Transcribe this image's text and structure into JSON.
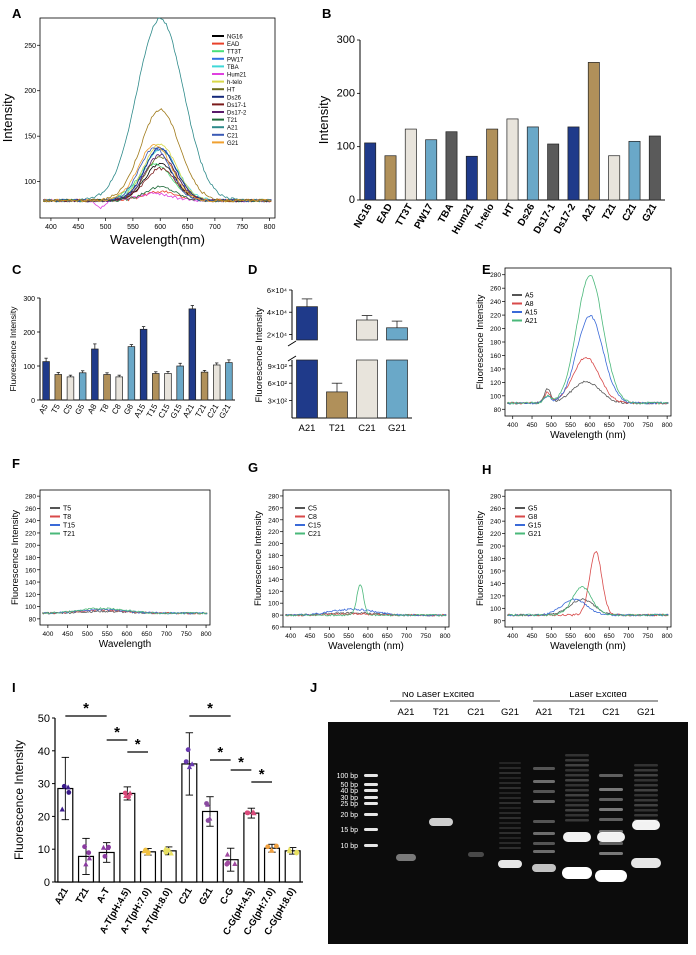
{
  "panels": {
    "A": {
      "letter": "A",
      "type": "line",
      "xlabel": "Wavelength(nm)",
      "ylabel": "Intensity",
      "xlim": [
        380,
        810
      ],
      "ylim": [
        60,
        280
      ],
      "xticks": [
        400,
        450,
        500,
        550,
        600,
        650,
        700,
        750,
        800
      ],
      "yticks": [
        100,
        150,
        200,
        250
      ],
      "series": [
        {
          "name": "NG16",
          "color": "#000000",
          "peak": 600,
          "amp": 40,
          "width": 40,
          "bump": 0
        },
        {
          "name": "EAD",
          "color": "#e8412a",
          "peak": 600,
          "amp": 10,
          "width": 40,
          "bump": 0
        },
        {
          "name": "TT3T",
          "color": "#48e07a",
          "peak": 590,
          "amp": 40,
          "width": 45,
          "bump": 0
        },
        {
          "name": "PW17",
          "color": "#2f6fe0",
          "peak": 600,
          "amp": 58,
          "width": 40,
          "bump": 0
        },
        {
          "name": "TBA",
          "color": "#3fd8d8",
          "peak": 600,
          "amp": 55,
          "width": 45,
          "bump": 0
        },
        {
          "name": "Hum21",
          "color": "#e040e0",
          "peak": 590,
          "amp": 8,
          "width": 40,
          "bump": -8
        },
        {
          "name": "h-telo",
          "color": "#d8d84a",
          "peak": 600,
          "amp": 62,
          "width": 42,
          "bump": 0
        },
        {
          "name": "HT",
          "color": "#6b6b1c",
          "peak": 600,
          "amp": 48,
          "width": 40,
          "bump": 0
        },
        {
          "name": "Ds26",
          "color": "#152a7a",
          "peak": 600,
          "amp": 58,
          "width": 40,
          "bump": 0
        },
        {
          "name": "Ds17-1",
          "color": "#7a1a1a",
          "peak": 600,
          "amp": 35,
          "width": 40,
          "bump": 0
        },
        {
          "name": "Ds17-2",
          "color": "#5a1a6a",
          "peak": 600,
          "amp": 50,
          "width": 40,
          "bump": 0
        },
        {
          "name": "T21",
          "color": "#1f6b3a",
          "peak": 600,
          "amp": 15,
          "width": 40,
          "bump": 0
        },
        {
          "name": "A21",
          "color": "#2e8a8a",
          "peak": 600,
          "amp": 200,
          "width": 60,
          "bump": 0
        },
        {
          "name": "C21",
          "color": "#3a5ab5",
          "peak": 590,
          "amp": 58,
          "width": 40,
          "bump": 0
        },
        {
          "name": "G21",
          "color": "#f0a030",
          "peak": 590,
          "amp": 62,
          "width": 42,
          "bump": 0
        },
        {
          "name": "",
          "color": "#a07a1a",
          "peak": 600,
          "amp": 100,
          "width": 50,
          "bump": 0
        }
      ]
    },
    "B": {
      "letter": "B",
      "type": "bar",
      "ylabel": "Intensity",
      "ylim": [
        0,
        300
      ],
      "yticks": [
        0,
        100,
        200,
        300
      ],
      "categories": [
        "NG16",
        "EAD",
        "TT3T",
        "PW17",
        "TBA",
        "Hum21",
        "h-telo",
        "HT",
        "Ds26",
        "Ds17-1",
        "Ds17-2",
        "A21",
        "T21",
        "C21",
        "G21"
      ],
      "values": [
        107,
        83,
        133,
        113,
        128,
        82,
        133,
        152,
        137,
        105,
        137,
        258,
        83,
        110,
        120
      ],
      "colors": [
        "#1f3a8a",
        "#b0905a",
        "#e8e4dc",
        "#6aa8c8",
        "#5a5a5a",
        "#1f3a8a",
        "#b0905a",
        "#e8e4dc",
        "#6aa8c8",
        "#5a5a5a",
        "#1f3a8a",
        "#b0905a",
        "#e8e4dc",
        "#6aa8c8",
        "#5a5a5a"
      ]
    },
    "C": {
      "letter": "C",
      "type": "bar",
      "ylabel": "Fluorescence Intensity",
      "ylim": [
        0,
        300
      ],
      "yticks": [
        0,
        100,
        200,
        300
      ],
      "categories": [
        "A5",
        "T5",
        "C5",
        "G5",
        "A8",
        "T8",
        "C8",
        "G8",
        "A15",
        "T15",
        "C15",
        "G15",
        "A21",
        "T21",
        "C21",
        "G21"
      ],
      "values": [
        113,
        75,
        68,
        80,
        150,
        75,
        68,
        157,
        208,
        78,
        78,
        100,
        268,
        82,
        103,
        110
      ],
      "errors": [
        10,
        6,
        5,
        6,
        15,
        5,
        5,
        6,
        8,
        5,
        6,
        8,
        10,
        5,
        6,
        8
      ],
      "colors": [
        "#1f3a8a",
        "#b0905a",
        "#e8e4dc",
        "#6aa8c8",
        "#1f3a8a",
        "#b0905a",
        "#e8e4dc",
        "#6aa8c8",
        "#1f3a8a",
        "#b0905a",
        "#e8e4dc",
        "#6aa8c8",
        "#1f3a8a",
        "#b0905a",
        "#e8e4dc",
        "#6aa8c8"
      ]
    },
    "D": {
      "letter": "D",
      "type": "bar",
      "ylabel": "Fluorescence Intensity",
      "categories": [
        "A21",
        "T21",
        "C21",
        "G21"
      ],
      "values": [
        45000,
        450,
        33000,
        26000
      ],
      "errors": [
        7000,
        150,
        4000,
        6000
      ],
      "colors": [
        "#1f3a8a",
        "#b0905a",
        "#e8e4dc",
        "#6aa8c8"
      ],
      "upper_ticks": [
        "6×10⁴",
        "4×10⁴",
        "2×10⁴"
      ],
      "lower_ticks": [
        "9×10²",
        "6×10²",
        "3×10²"
      ]
    },
    "E": {
      "letter": "E",
      "type": "line",
      "xlabel": "Wavelength (nm)",
      "ylabel": "Fluorescence Intensity",
      "xlim": [
        380,
        810
      ],
      "ylim": [
        70,
        290
      ],
      "xticks": [
        400,
        450,
        500,
        550,
        600,
        650,
        700,
        750,
        800
      ],
      "yticks": [
        80,
        100,
        120,
        140,
        160,
        180,
        200,
        220,
        240,
        260,
        280
      ],
      "series": [
        {
          "name": "A5",
          "color": "#555555",
          "peak": 590,
          "amp": 32,
          "width": 50,
          "bump": 20
        },
        {
          "name": "A8",
          "color": "#d84a4a",
          "peak": 590,
          "amp": 68,
          "width": 48,
          "bump": 15
        },
        {
          "name": "A15",
          "color": "#3a6ad8",
          "peak": 600,
          "amp": 130,
          "width": 48,
          "bump": 10
        },
        {
          "name": "A21",
          "color": "#4ab87a",
          "peak": 600,
          "amp": 190,
          "width": 48,
          "bump": 10
        }
      ]
    },
    "F": {
      "letter": "F",
      "type": "line",
      "xlabel": "Wavelength",
      "ylabel": "Fluorescence Intensity",
      "xlim": [
        380,
        810
      ],
      "ylim": [
        70,
        290
      ],
      "xticks": [
        400,
        450,
        500,
        550,
        600,
        650,
        700,
        750,
        800
      ],
      "yticks": [
        80,
        100,
        120,
        140,
        160,
        180,
        200,
        220,
        240,
        260,
        280
      ],
      "series": [
        {
          "name": "T5",
          "color": "#555555",
          "peak": 540,
          "amp": 3,
          "width": 80,
          "bump": 0
        },
        {
          "name": "T8",
          "color": "#d84a4a",
          "peak": 540,
          "amp": 5,
          "width": 80,
          "bump": 0
        },
        {
          "name": "T15",
          "color": "#3a6ad8",
          "peak": 540,
          "amp": 6,
          "width": 80,
          "bump": 0
        },
        {
          "name": "T21",
          "color": "#4ab87a",
          "peak": 540,
          "amp": 8,
          "width": 80,
          "bump": 0
        }
      ]
    },
    "G": {
      "letter": "G",
      "type": "line",
      "xlabel": "Wavelength (nm)",
      "ylabel": "Fluorescence Intensity",
      "xlim": [
        380,
        810
      ],
      "ylim": [
        60,
        290
      ],
      "xticks": [
        400,
        450,
        500,
        550,
        600,
        650,
        700,
        750,
        800
      ],
      "yticks": [
        60,
        80,
        100,
        120,
        140,
        160,
        180,
        200,
        220,
        240,
        260,
        280
      ],
      "series": [
        {
          "name": "C5",
          "color": "#555555",
          "peak": 560,
          "amp": 4,
          "width": 80,
          "bump": 0
        },
        {
          "name": "C8",
          "color": "#d84a4a",
          "peak": 560,
          "amp": 2,
          "width": 80,
          "bump": 0
        },
        {
          "name": "C15",
          "color": "#3a6ad8",
          "peak": 560,
          "amp": 10,
          "width": 80,
          "bump": 0
        },
        {
          "name": "C21",
          "color": "#4ab87a",
          "peak": 580,
          "amp": 52,
          "width": 12,
          "bump": 0
        }
      ]
    },
    "H": {
      "letter": "H",
      "type": "line",
      "xlabel": "Wavelength (nm)",
      "ylabel": "Fluorescence Intensity",
      "xlim": [
        380,
        810
      ],
      "ylim": [
        70,
        290
      ],
      "xticks": [
        400,
        450,
        500,
        550,
        600,
        650,
        700,
        750,
        800
      ],
      "yticks": [
        80,
        100,
        120,
        140,
        160,
        180,
        200,
        220,
        240,
        260,
        280
      ],
      "series": [
        {
          "name": "G5",
          "color": "#555555",
          "peak": 580,
          "amp": 25,
          "width": 45,
          "bump": 0
        },
        {
          "name": "G8",
          "color": "#d84a4a",
          "peak": 615,
          "amp": 102,
          "width": 22,
          "bump": 0
        },
        {
          "name": "G15",
          "color": "#3a6ad8",
          "peak": 560,
          "amp": 25,
          "width": 45,
          "bump": 0
        },
        {
          "name": "G21",
          "color": "#4ab87a",
          "peak": 580,
          "amp": 45,
          "width": 35,
          "bump": 0
        }
      ]
    },
    "I": {
      "letter": "I",
      "type": "bar",
      "ylabel": "Fluorescence Intensity",
      "ylim": [
        0,
        50
      ],
      "yticks": [
        0,
        10,
        20,
        30,
        40,
        50
      ],
      "categories": [
        "A21",
        "T21",
        "A-T",
        "A-T(pH:4.5)",
        "A-T(pH:7.0)",
        "A-T(pH:8.0)",
        "C21",
        "G21",
        "C-G",
        "C-G(pH:4.5)",
        "C-G(pH:7.0)",
        "C-G(pH:8.0)"
      ],
      "values": [
        28.5,
        7.8,
        9.0,
        27.0,
        9.2,
        9.5,
        36.0,
        21.5,
        6.8,
        21.0,
        10.3,
        9.5
      ],
      "errors": [
        9.5,
        5.5,
        3.0,
        2.0,
        1.0,
        1.2,
        9.5,
        4.5,
        3.5,
        1.5,
        1.2,
        1.0
      ],
      "dot_colors": [
        "#3a1a8a",
        "#8a3aa0",
        "#8a3aa0",
        "#d84a7a",
        "#f0c040",
        "#e8e060",
        "#6a3ab0",
        "#8a4aa0",
        "#a04aa0",
        "#d84a7a",
        "#f0a040",
        "#e8e060"
      ],
      "sig_marker": "*",
      "significance": [
        [
          0,
          2
        ],
        [
          2,
          3
        ],
        [
          3,
          4
        ],
        [
          6,
          8
        ],
        [
          7,
          8
        ],
        [
          8,
          9
        ],
        [
          9,
          10
        ]
      ]
    },
    "J": {
      "letter": "J",
      "group_left": "No Laser Excited",
      "group_right": "Laser Excited",
      "lanes": [
        "A21",
        "T21",
        "C21",
        "G21",
        "A21",
        "T21",
        "C21",
        "G21"
      ],
      "ladder": [
        "100 bp",
        "50 bp",
        "40 bp",
        "30 bp",
        "25 bp",
        "20 bp",
        "15 bp",
        "10 bp"
      ]
    }
  }
}
